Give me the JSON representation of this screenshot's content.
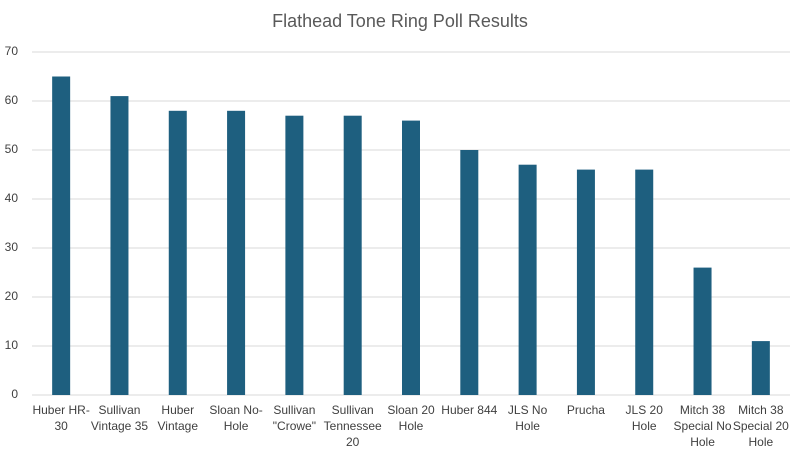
{
  "chart_data": {
    "type": "bar",
    "title": "Flathead Tone Ring Poll Results",
    "categories": [
      "Huber HR-30",
      "Sullivan Vintage 35",
      "Huber Vintage",
      "Sloan No-Hole",
      "Sullivan \"Crowe\"",
      "Sullivan Tennessee 20",
      "Sloan 20 Hole",
      "Huber 844",
      "JLS No Hole",
      "Prucha",
      "JLS 20 Hole",
      "Mitch 38 Special No Hole",
      "Mitch 38 Special 20 Hole"
    ],
    "values": [
      65,
      61,
      58,
      58,
      57,
      57,
      56,
      50,
      47,
      46,
      46,
      26,
      11
    ],
    "color": "#1e5f7f",
    "ylim": [
      0,
      70
    ],
    "yticks": [
      0,
      10,
      20,
      30,
      40,
      50,
      60,
      70
    ],
    "grid": true
  }
}
